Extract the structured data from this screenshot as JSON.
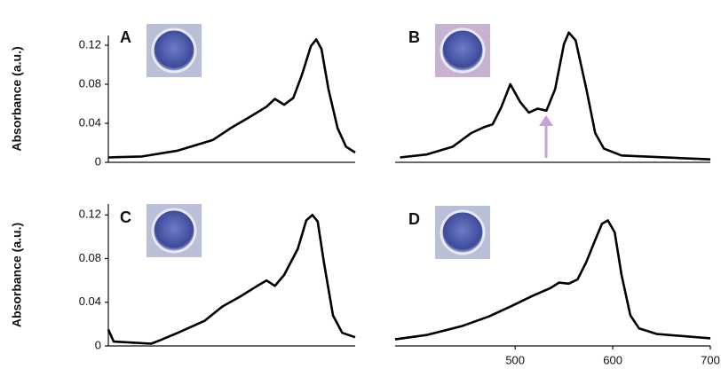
{
  "chart_data": [
    {
      "type": "line",
      "panel_label": "A",
      "ylabel": "Absorbance (a.u.)",
      "color": "#000000",
      "x": [
        377,
        421,
        468,
        514,
        537,
        561,
        584,
        595,
        607,
        619,
        630,
        642,
        649,
        656,
        665,
        677,
        688,
        700
      ],
      "values": [
        0.005,
        0.006,
        0.012,
        0.023,
        0.035,
        0.046,
        0.057,
        0.065,
        0.059,
        0.066,
        0.089,
        0.119,
        0.126,
        0.116,
        0.075,
        0.035,
        0.016,
        0.01
      ],
      "xlim": [
        377,
        700
      ],
      "ylim": [
        0,
        0.13
      ],
      "yticks": [
        0,
        0.04,
        0.08,
        0.12
      ]
    },
    {
      "type": "line",
      "panel_label": "B",
      "color": "#000000",
      "x": [
        382,
        409,
        436,
        455,
        468,
        477,
        486,
        495,
        505,
        514,
        523,
        532,
        541,
        550,
        555,
        562,
        573,
        582,
        591,
        609,
        700
      ],
      "values": [
        0.005,
        0.008,
        0.016,
        0.03,
        0.036,
        0.039,
        0.057,
        0.08,
        0.062,
        0.051,
        0.055,
        0.053,
        0.075,
        0.121,
        0.133,
        0.125,
        0.075,
        0.03,
        0.014,
        0.007,
        0.003
      ],
      "xlim": [
        377,
        700
      ],
      "ylim": [
        0,
        0.13
      ]
    },
    {
      "type": "line",
      "panel_label": "C",
      "ylabel": "Absorbance (a.u.)",
      "color": "#000000",
      "x": [
        377,
        384,
        410,
        433,
        444,
        468,
        503,
        526,
        549,
        572,
        584,
        595,
        607,
        625,
        636,
        644,
        651,
        659,
        671,
        683,
        700
      ],
      "values": [
        0.015,
        0.004,
        0.003,
        0.002,
        0.005,
        0.012,
        0.023,
        0.036,
        0.045,
        0.055,
        0.06,
        0.055,
        0.065,
        0.089,
        0.115,
        0.12,
        0.114,
        0.077,
        0.028,
        0.012,
        0.008
      ],
      "xlim": [
        377,
        700
      ],
      "ylim": [
        0,
        0.13
      ],
      "yticks": [
        0,
        0.04,
        0.08,
        0.12
      ]
    },
    {
      "type": "line",
      "panel_label": "D",
      "color": "#000000",
      "x": [
        377,
        409,
        445,
        473,
        495,
        518,
        536,
        545,
        555,
        564,
        573,
        582,
        589,
        595,
        602,
        609,
        618,
        627,
        645,
        700
      ],
      "values": [
        0.006,
        0.01,
        0.018,
        0.027,
        0.036,
        0.046,
        0.053,
        0.058,
        0.057,
        0.061,
        0.077,
        0.097,
        0.112,
        0.115,
        0.104,
        0.065,
        0.028,
        0.016,
        0.011,
        0.007
      ],
      "xlim": [
        377,
        700
      ],
      "ylim": [
        0,
        0.13
      ],
      "xticks": [
        500,
        600,
        700
      ]
    }
  ]
}
